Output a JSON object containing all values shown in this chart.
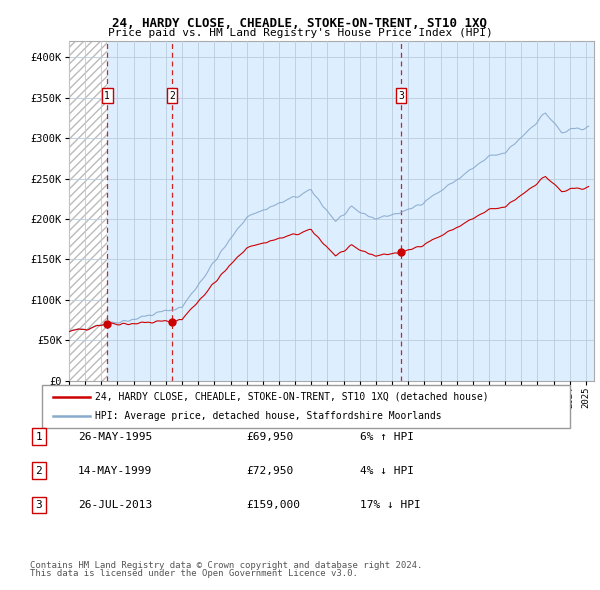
{
  "title": "24, HARDY CLOSE, CHEADLE, STOKE-ON-TRENT, ST10 1XQ",
  "subtitle": "Price paid vs. HM Land Registry's House Price Index (HPI)",
  "ylim": [
    0,
    420000
  ],
  "yticks": [
    0,
    50000,
    100000,
    150000,
    200000,
    250000,
    300000,
    350000,
    400000
  ],
  "ytick_labels": [
    "£0",
    "£50K",
    "£100K",
    "£150K",
    "£200K",
    "£250K",
    "£300K",
    "£350K",
    "£400K"
  ],
  "xlim_start": 1993.0,
  "xlim_end": 2025.5,
  "hatch_end_year": 1995.37,
  "sale_dates": [
    1995.37,
    1999.37,
    2013.56
  ],
  "sale_prices": [
    69950,
    72950,
    159000
  ],
  "sale_labels": [
    "1",
    "2",
    "3"
  ],
  "legend_line1": "24, HARDY CLOSE, CHEADLE, STOKE-ON-TRENT, ST10 1XQ (detached house)",
  "legend_line2": "HPI: Average price, detached house, Staffordshire Moorlands",
  "table_rows": [
    [
      "1",
      "26-MAY-1995",
      "£69,950",
      "6% ↑ HPI"
    ],
    [
      "2",
      "14-MAY-1999",
      "£72,950",
      "4% ↓ HPI"
    ],
    [
      "3",
      "26-JUL-2013",
      "£159,000",
      "17% ↓ HPI"
    ]
  ],
  "footnote1": "Contains HM Land Registry data © Crown copyright and database right 2024.",
  "footnote2": "This data is licensed under the Open Government Licence v3.0.",
  "red_color": "#cc0000",
  "blue_color": "#88aacc",
  "bg_color": "#ddeeff",
  "hatch_color": "#bbbbbb",
  "grid_color": "#bbccdd",
  "box_color": "#cc0000"
}
